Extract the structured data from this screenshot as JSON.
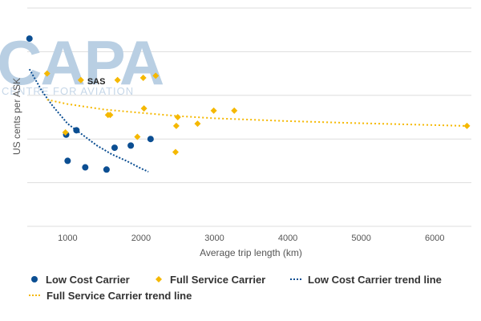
{
  "watermark": {
    "brand": "CAPA",
    "tagline": "CENTRE FOR AVIATION"
  },
  "chart_data": {
    "type": "scatter",
    "title": "",
    "xlabel": "Average trip length (km)",
    "ylabel": "US cents per ASK",
    "xlim": [
      450,
      6500
    ],
    "ylim": [
      0,
      10
    ],
    "xticks": [
      1000,
      2000,
      3000,
      4000,
      5000,
      6000
    ],
    "yticks_shown": false,
    "grid": "horizontal",
    "legend_position": "bottom",
    "series": [
      {
        "name": "Low Cost Carrier",
        "kind": "points",
        "marker": "circle",
        "color": "#0b4e92",
        "x": [
          480,
          980,
          1000,
          1120,
          1240,
          1530,
          1640,
          1860,
          2130
        ],
        "y": [
          8.6,
          4.2,
          3.0,
          4.4,
          2.7,
          2.6,
          3.6,
          3.7,
          4.0
        ]
      },
      {
        "name": "Full Service Carrier",
        "kind": "points",
        "marker": "diamond",
        "color": "#f5b800",
        "x": [
          720,
          970,
          1180,
          1550,
          1580,
          1680,
          1950,
          2030,
          2040,
          2200,
          2470,
          2480,
          2500,
          2770,
          2990,
          3270,
          6440
        ],
        "y": [
          7.0,
          4.3,
          6.7,
          5.1,
          5.1,
          6.7,
          4.1,
          6.8,
          5.4,
          6.9,
          3.4,
          4.6,
          5.0,
          4.7,
          5.3,
          5.3,
          4.6
        ]
      },
      {
        "name": "Low Cost Carrier trend line",
        "kind": "line",
        "style": "dotted",
        "color": "#0b4e92",
        "x": [
          480,
          650,
          800,
          1000,
          1200,
          1400,
          1600,
          1800,
          2000,
          2100
        ],
        "y": [
          7.2,
          6.2,
          5.5,
          4.7,
          4.2,
          3.7,
          3.3,
          3.0,
          2.65,
          2.5
        ]
      },
      {
        "name": "Full Service Carrier trend line",
        "kind": "line",
        "style": "dotted",
        "color": "#f5b800",
        "x": [
          720,
          1000,
          1500,
          2000,
          2500,
          3000,
          4000,
          5000,
          6440
        ],
        "y": [
          5.8,
          5.6,
          5.35,
          5.2,
          5.05,
          4.95,
          4.82,
          4.72,
          4.6
        ]
      }
    ],
    "annotations": [
      {
        "text": "SAS",
        "x": 1180,
        "y": 6.7
      }
    ]
  }
}
